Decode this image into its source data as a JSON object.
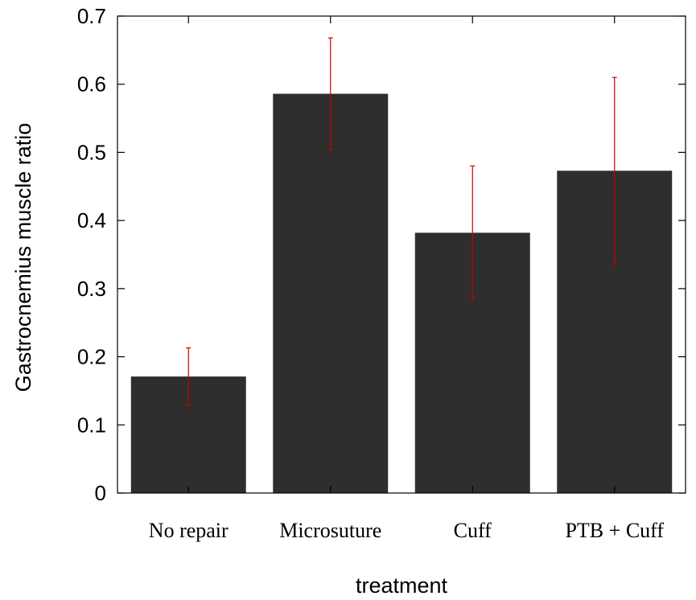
{
  "chart_data": {
    "type": "bar",
    "title": "",
    "xlabel": "treatment",
    "ylabel": "Gastrocnemius muscle ratio",
    "categories": [
      "No repair",
      "Microsuture",
      "Cuff",
      "PTB + Cuff"
    ],
    "values": [
      0.171,
      0.586,
      0.382,
      0.473
    ],
    "error_low": [
      0.129,
      0.504,
      0.284,
      0.336
    ],
    "error_high": [
      0.213,
      0.668,
      0.48,
      0.61
    ],
    "ylim": [
      0,
      0.7
    ],
    "yticks": [
      "0",
      "0.1",
      "0.2",
      "0.3",
      "0.4",
      "0.5",
      "0.6",
      "0.7"
    ],
    "grid": false,
    "colors": {
      "bar": "#2e2e2e",
      "error_bar": "#cc0000"
    }
  }
}
